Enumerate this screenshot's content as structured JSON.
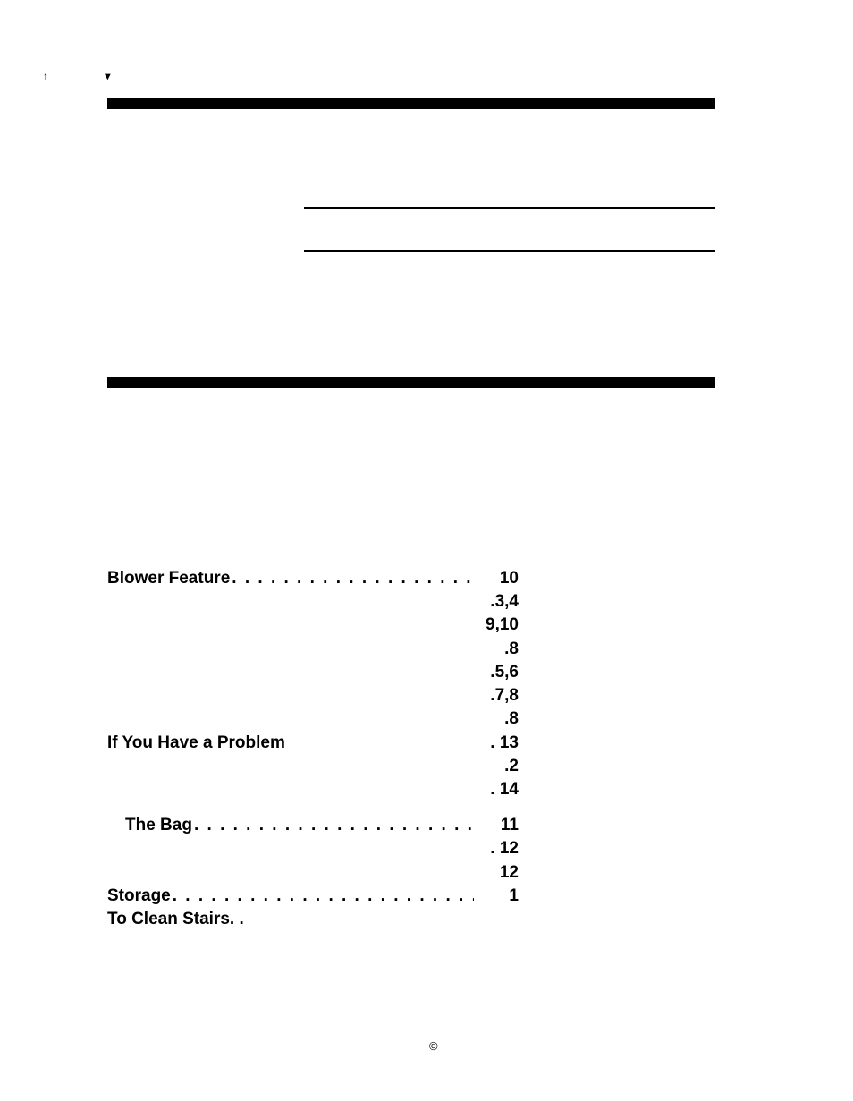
{
  "marks": {
    "corner": "↑   ▾",
    "copyright": "©"
  },
  "rules": {
    "thick_color": "#000000",
    "thin_color": "#000000"
  },
  "toc": {
    "font_size_pt": 14,
    "font_weight": 700,
    "text_color": "#000000",
    "dot_char": ".",
    "rows": [
      {
        "label": "Blower Feature",
        "page": "10",
        "dots": true,
        "indent": false
      },
      {
        "label": "",
        "page": ".3,4",
        "dots": false,
        "indent": false
      },
      {
        "label": "",
        "page": "9,10",
        "dots": false,
        "indent": false
      },
      {
        "label": "",
        "page": ".8",
        "dots": false,
        "indent": false
      },
      {
        "label": "",
        "page": ".5,6",
        "dots": false,
        "indent": false
      },
      {
        "label": "",
        "page": ".7,8",
        "dots": false,
        "indent": false
      },
      {
        "label": "",
        "page": ".8",
        "dots": false,
        "indent": false
      },
      {
        "label": "If You Have a Problem",
        "page": ". 13",
        "dots": false,
        "indent": false
      },
      {
        "label": "",
        "page": ".2",
        "dots": false,
        "indent": false
      },
      {
        "label": "",
        "page": ". 14",
        "dots": false,
        "indent": false
      },
      {
        "spacer": true
      },
      {
        "label": "The Bag",
        "page": "11",
        "dots": true,
        "indent": true
      },
      {
        "label": "",
        "page": ". 12",
        "dots": false,
        "indent": true
      },
      {
        "label": "",
        "page": "12",
        "dots": false,
        "indent": true
      },
      {
        "label": "Storage",
        "page": "1",
        "dots": true,
        "indent": false
      },
      {
        "label": "To Clean Stairs. .",
        "page": "",
        "dots": false,
        "indent": false
      }
    ]
  }
}
